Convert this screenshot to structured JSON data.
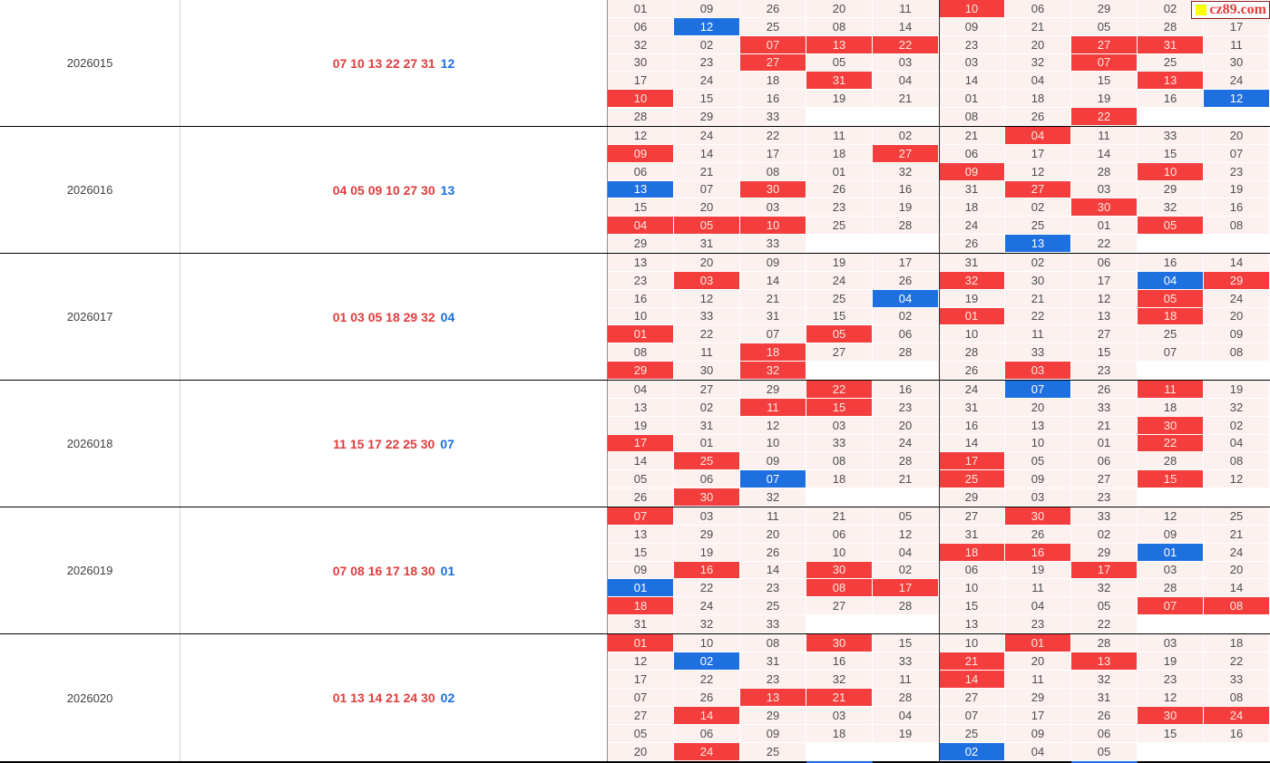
{
  "watermark": {
    "text": "cz89.com"
  },
  "colors": {
    "hit_red": "#f43e3e",
    "hit_blue": "#1e70e1",
    "red_ball_text": "#e13c3c",
    "blue_ball_text": "#1b6fdc",
    "cell_bg": "#fcf1ee",
    "watermark_square": "#ffff00"
  },
  "blocks": [
    {
      "period": "2026015",
      "red_balls": "07 10 13 22 27 31",
      "blue_ball": "12",
      "grid": [
        [
          "01",
          "09",
          "26",
          "20",
          "11",
          "10R",
          "06",
          "29",
          "02",
          ""
        ],
        [
          "06",
          "12B",
          "25",
          "08",
          "14",
          "09",
          "21",
          "05",
          "28",
          "17"
        ],
        [
          "32",
          "02",
          "07R",
          "13R",
          "22R",
          "23",
          "20",
          "27R",
          "31R",
          "11"
        ],
        [
          "30",
          "23",
          "27R",
          "05",
          "03",
          "03",
          "32",
          "07R",
          "25",
          "30"
        ],
        [
          "17",
          "24",
          "18",
          "31R",
          "04",
          "14",
          "04",
          "15",
          "13R",
          "24"
        ],
        [
          "10R",
          "15",
          "16",
          "19",
          "21",
          "01",
          "18",
          "19",
          "16",
          "12B"
        ],
        [
          "28",
          "29",
          "33",
          "",
          "",
          "08",
          "26",
          "22R",
          "",
          ""
        ]
      ]
    },
    {
      "period": "2026016",
      "red_balls": "04 05 09 10 27 30",
      "blue_ball": "13",
      "grid": [
        [
          "12",
          "24",
          "22",
          "11",
          "02",
          "21",
          "04R",
          "11",
          "33",
          "20"
        ],
        [
          "09R",
          "14",
          "17",
          "18",
          "27R",
          "06",
          "17",
          "14",
          "15",
          "07"
        ],
        [
          "06",
          "21",
          "08",
          "01",
          "32",
          "09R",
          "12",
          "28",
          "10R",
          "23"
        ],
        [
          "13B",
          "07",
          "30R",
          "26",
          "16",
          "31",
          "27R",
          "03",
          "29",
          "19"
        ],
        [
          "15",
          "20",
          "03",
          "23",
          "19",
          "18",
          "02",
          "30R",
          "32",
          "16"
        ],
        [
          "04R",
          "05R",
          "10R",
          "25",
          "28",
          "24",
          "25",
          "01",
          "05R",
          "08"
        ],
        [
          "29",
          "31",
          "33",
          "",
          "",
          "26",
          "13B",
          "22",
          "",
          ""
        ]
      ]
    },
    {
      "period": "2026017",
      "red_balls": "01 03 05 18 29 32",
      "blue_ball": "04",
      "grid": [
        [
          "13",
          "20",
          "09",
          "19",
          "17",
          "31",
          "02",
          "06",
          "16",
          "14"
        ],
        [
          "23",
          "03R",
          "14",
          "24",
          "26",
          "32R",
          "30",
          "17",
          "04B",
          "29R"
        ],
        [
          "16",
          "12",
          "21",
          "25",
          "04B",
          "19",
          "21",
          "12",
          "05R",
          "24"
        ],
        [
          "10",
          "33",
          "31",
          "15",
          "02",
          "01R",
          "22",
          "13",
          "18R",
          "20"
        ],
        [
          "01R",
          "22",
          "07",
          "05R",
          "06",
          "10",
          "11",
          "27",
          "25",
          "09"
        ],
        [
          "08",
          "11",
          "18R",
          "27",
          "28",
          "28",
          "33",
          "15",
          "07",
          "08"
        ],
        [
          "29R",
          "30",
          "32R",
          "",
          "",
          "26",
          "03R",
          "23",
          "",
          ""
        ]
      ]
    },
    {
      "period": "2026018",
      "red_balls": "11 15 17 22 25 30",
      "blue_ball": "07",
      "grid": [
        [
          "04",
          "27",
          "29",
          "22R",
          "16",
          "24",
          "07B",
          "26",
          "11R",
          "19"
        ],
        [
          "13",
          "02",
          "11R",
          "15R",
          "23",
          "31",
          "20",
          "33",
          "18",
          "32"
        ],
        [
          "19",
          "31",
          "12",
          "03",
          "20",
          "16",
          "13",
          "21",
          "30R",
          "02"
        ],
        [
          "17R",
          "01",
          "10",
          "33",
          "24",
          "14",
          "10",
          "01",
          "22R",
          "04"
        ],
        [
          "14",
          "25R",
          "09",
          "08",
          "28",
          "17R",
          "05",
          "06",
          "28",
          "08"
        ],
        [
          "05",
          "06",
          "07B",
          "18",
          "21",
          "25R",
          "09",
          "27",
          "15R",
          "12"
        ],
        [
          "26",
          "30R",
          "32",
          "",
          "",
          "29",
          "03",
          "23",
          "",
          ""
        ]
      ]
    },
    {
      "period": "2026019",
      "red_balls": "07 08 16 17 18 30",
      "blue_ball": "01",
      "grid": [
        [
          "07R",
          "03",
          "11",
          "21",
          "05",
          "27",
          "30R",
          "33",
          "12",
          "25"
        ],
        [
          "13",
          "29",
          "20",
          "06",
          "12",
          "31",
          "26",
          "02",
          "09",
          "21"
        ],
        [
          "15",
          "19",
          "26",
          "10",
          "04",
          "18R",
          "16R",
          "29",
          "01B",
          "24"
        ],
        [
          "09",
          "16R",
          "14",
          "30R",
          "02",
          "06",
          "19",
          "17R",
          "03",
          "20"
        ],
        [
          "01B",
          "22",
          "23",
          "08R",
          "17R",
          "10",
          "11",
          "32",
          "28",
          "14"
        ],
        [
          "18R",
          "24",
          "25",
          "27",
          "28",
          "15",
          "04",
          "05",
          "07R",
          "08R"
        ],
        [
          "31",
          "32",
          "33",
          "",
          "",
          "13",
          "23",
          "22",
          "",
          ""
        ]
      ]
    },
    {
      "period": "2026020",
      "red_balls": "01 13 14 21 24 30",
      "blue_ball": "02",
      "grid": [
        [
          "01R",
          "10",
          "08",
          "30R",
          "15",
          "10",
          "01R",
          "28",
          "03",
          "18"
        ],
        [
          "12",
          "02B",
          "31",
          "16",
          "33",
          "21R",
          "20",
          "13R",
          "19",
          "22"
        ],
        [
          "17",
          "22",
          "23",
          "32",
          "11",
          "14R",
          "11",
          "32",
          "23",
          "33"
        ],
        [
          "07",
          "26",
          "13R",
          "21R",
          "28",
          "27",
          "29",
          "31",
          "12",
          "08"
        ],
        [
          "27",
          "14R",
          "29",
          "03",
          "04",
          "07",
          "17",
          "26",
          "30R",
          "24R"
        ],
        [
          "05",
          "06",
          "09",
          "18",
          "19",
          "25",
          "09",
          "06",
          "15",
          "16"
        ],
        [
          "20",
          "24R",
          "25",
          "",
          "",
          "02B",
          "04",
          "05",
          "",
          ""
        ]
      ]
    }
  ]
}
